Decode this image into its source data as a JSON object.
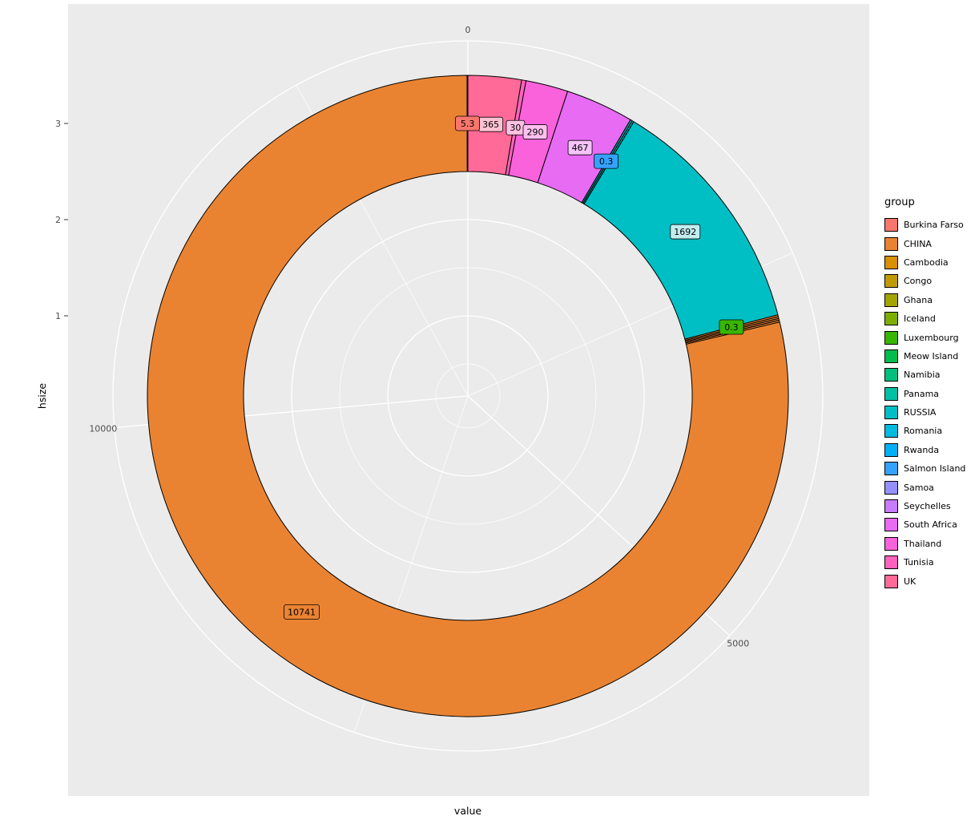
{
  "figure": {
    "xlabel": "value",
    "ylabel": "hsize",
    "panel_bg": "#EBEBEB",
    "grid_color": "#FFFFFF",
    "axis_text_color": "#4D4D4D",
    "axis_title_color": "#000000"
  },
  "legend": {
    "title": "group"
  },
  "chart_data": {
    "type": "pie",
    "subtype": "polar-donut",
    "direction": "clockwise-from-top",
    "title": "",
    "theta_axis": {
      "label": "value",
      "breaks": [
        0,
        5000,
        10000
      ],
      "minor_breaks": [
        2500,
        7500,
        12500
      ]
    },
    "r_axis": {
      "label": "hsize",
      "breaks": [
        1,
        2,
        3
      ]
    },
    "total": 13590.9,
    "segments": [
      {
        "group": "UK",
        "value": 365,
        "color": "#FF6A98",
        "label": "365",
        "label_fill": "#FFC2D4"
      },
      {
        "group": "Tunisia",
        "value": 30,
        "color": "#FF62BC",
        "label": "30",
        "label_fill": "#FFC0E4"
      },
      {
        "group": "Thailand",
        "value": 290,
        "color": "#FA62DB",
        "label": "290",
        "label_fill": "#FDC0EF"
      },
      {
        "group": "South Africa",
        "value": 467,
        "color": "#E76BF3",
        "label": "467",
        "label_fill": "#F5C4FA"
      },
      {
        "group": "Seychelles",
        "value": null,
        "color": "#C77CFF"
      },
      {
        "group": "Samoa",
        "value": null,
        "color": "#9590FF"
      },
      {
        "group": "Salmon Island",
        "value": 0.3,
        "color": "#35A2FF",
        "label": "0.3",
        "label_fill": "#35A2FF"
      },
      {
        "group": "Rwanda",
        "value": null,
        "color": "#00B0F6"
      },
      {
        "group": "Romania",
        "value": null,
        "color": "#00BAE0"
      },
      {
        "group": "RUSSIA",
        "value": 1692,
        "color": "#00BFC4",
        "label": "1692",
        "label_fill": "#C2ECEE"
      },
      {
        "group": "Panama",
        "value": null,
        "color": "#00C1A3"
      },
      {
        "group": "Namibia",
        "value": null,
        "color": "#00BF7D"
      },
      {
        "group": "Meow Island",
        "value": null,
        "color": "#00BB4E"
      },
      {
        "group": "Luxembourg",
        "value": 0.3,
        "color": "#39B600",
        "label": "0.3",
        "label_fill": "#39B600"
      },
      {
        "group": "Iceland",
        "value": null,
        "color": "#7CAE00"
      },
      {
        "group": "Ghana",
        "value": null,
        "color": "#A3A500"
      },
      {
        "group": "Congo",
        "value": null,
        "color": "#C09B00"
      },
      {
        "group": "Cambodia",
        "value": null,
        "color": "#D89000"
      },
      {
        "group": "CHINA",
        "value": 10741,
        "color": "#EA8331",
        "label": "10741",
        "label_fill": "#EA8331"
      },
      {
        "group": "Burkina Farso",
        "value": 5.3,
        "color": "#F8766D",
        "label": "5.3",
        "label_fill": "#F8766D"
      }
    ]
  }
}
